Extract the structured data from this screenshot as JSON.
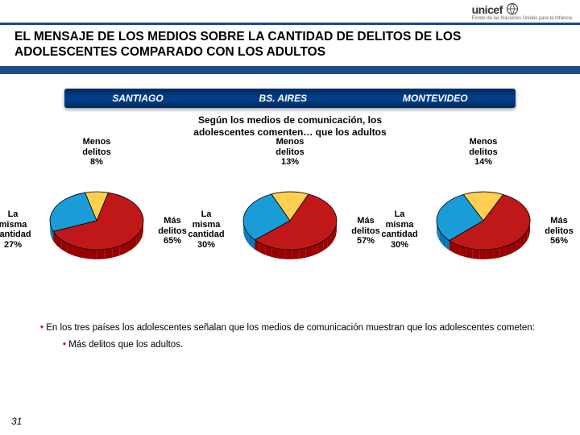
{
  "logo": {
    "name": "unicef",
    "sub": "Fondo de las Naciones Unidas para la Infancia"
  },
  "title": "EL MENSAJE DE LOS MEDIOS SOBRE LA CANTIDAD DE DELITOS DE LOS ADOLESCENTES COMPARADO CON LOS ADULTOS",
  "cities": [
    "SANTIAGO",
    "BS. AIRES",
    "MONTEVIDEO"
  ],
  "subtitle": "Según los medios de comunicación, los\nadolescentes comenten… que los adultos",
  "colors": {
    "mas": "#c01818",
    "misma": "#1a9cd8",
    "menos": "#ffd050",
    "slice_border": "#000000"
  },
  "pie_radius": 58,
  "label_fontsize": 11,
  "charts": [
    {
      "city": "SANTIAGO",
      "slices": [
        {
          "key": "mas",
          "label": "Más delitos",
          "value": 65,
          "color": "#c01818"
        },
        {
          "key": "misma",
          "label": "La misma cantidad",
          "value": 27,
          "color": "#1a9cd8"
        },
        {
          "key": "menos",
          "label": "Menos delitos",
          "value": 8,
          "color": "#ffd050"
        }
      ]
    },
    {
      "city": "BS. AIRES",
      "slices": [
        {
          "key": "mas",
          "label": "Más delitos",
          "value": 57,
          "color": "#c01818"
        },
        {
          "key": "misma",
          "label": "La misma cantidad",
          "value": 30,
          "color": "#1a9cd8"
        },
        {
          "key": "menos",
          "label": "Menos delitos",
          "value": 13,
          "color": "#ffd050"
        }
      ]
    },
    {
      "city": "MONTEVIDEO",
      "slices": [
        {
          "key": "mas",
          "label": "Más delitos",
          "value": 56,
          "color": "#c01818"
        },
        {
          "key": "misma",
          "label": "La misma cantidad",
          "value": 30,
          "color": "#1a9cd8"
        },
        {
          "key": "menos",
          "label": "Menos delitos",
          "value": 14,
          "color": "#ffd050"
        }
      ]
    }
  ],
  "bullets": [
    "En los tres países los adolescentes señalan que los medios de comunicación muestran que los adolescentes cometen:",
    "Más delitos que los adultos."
  ],
  "page_number": "31"
}
